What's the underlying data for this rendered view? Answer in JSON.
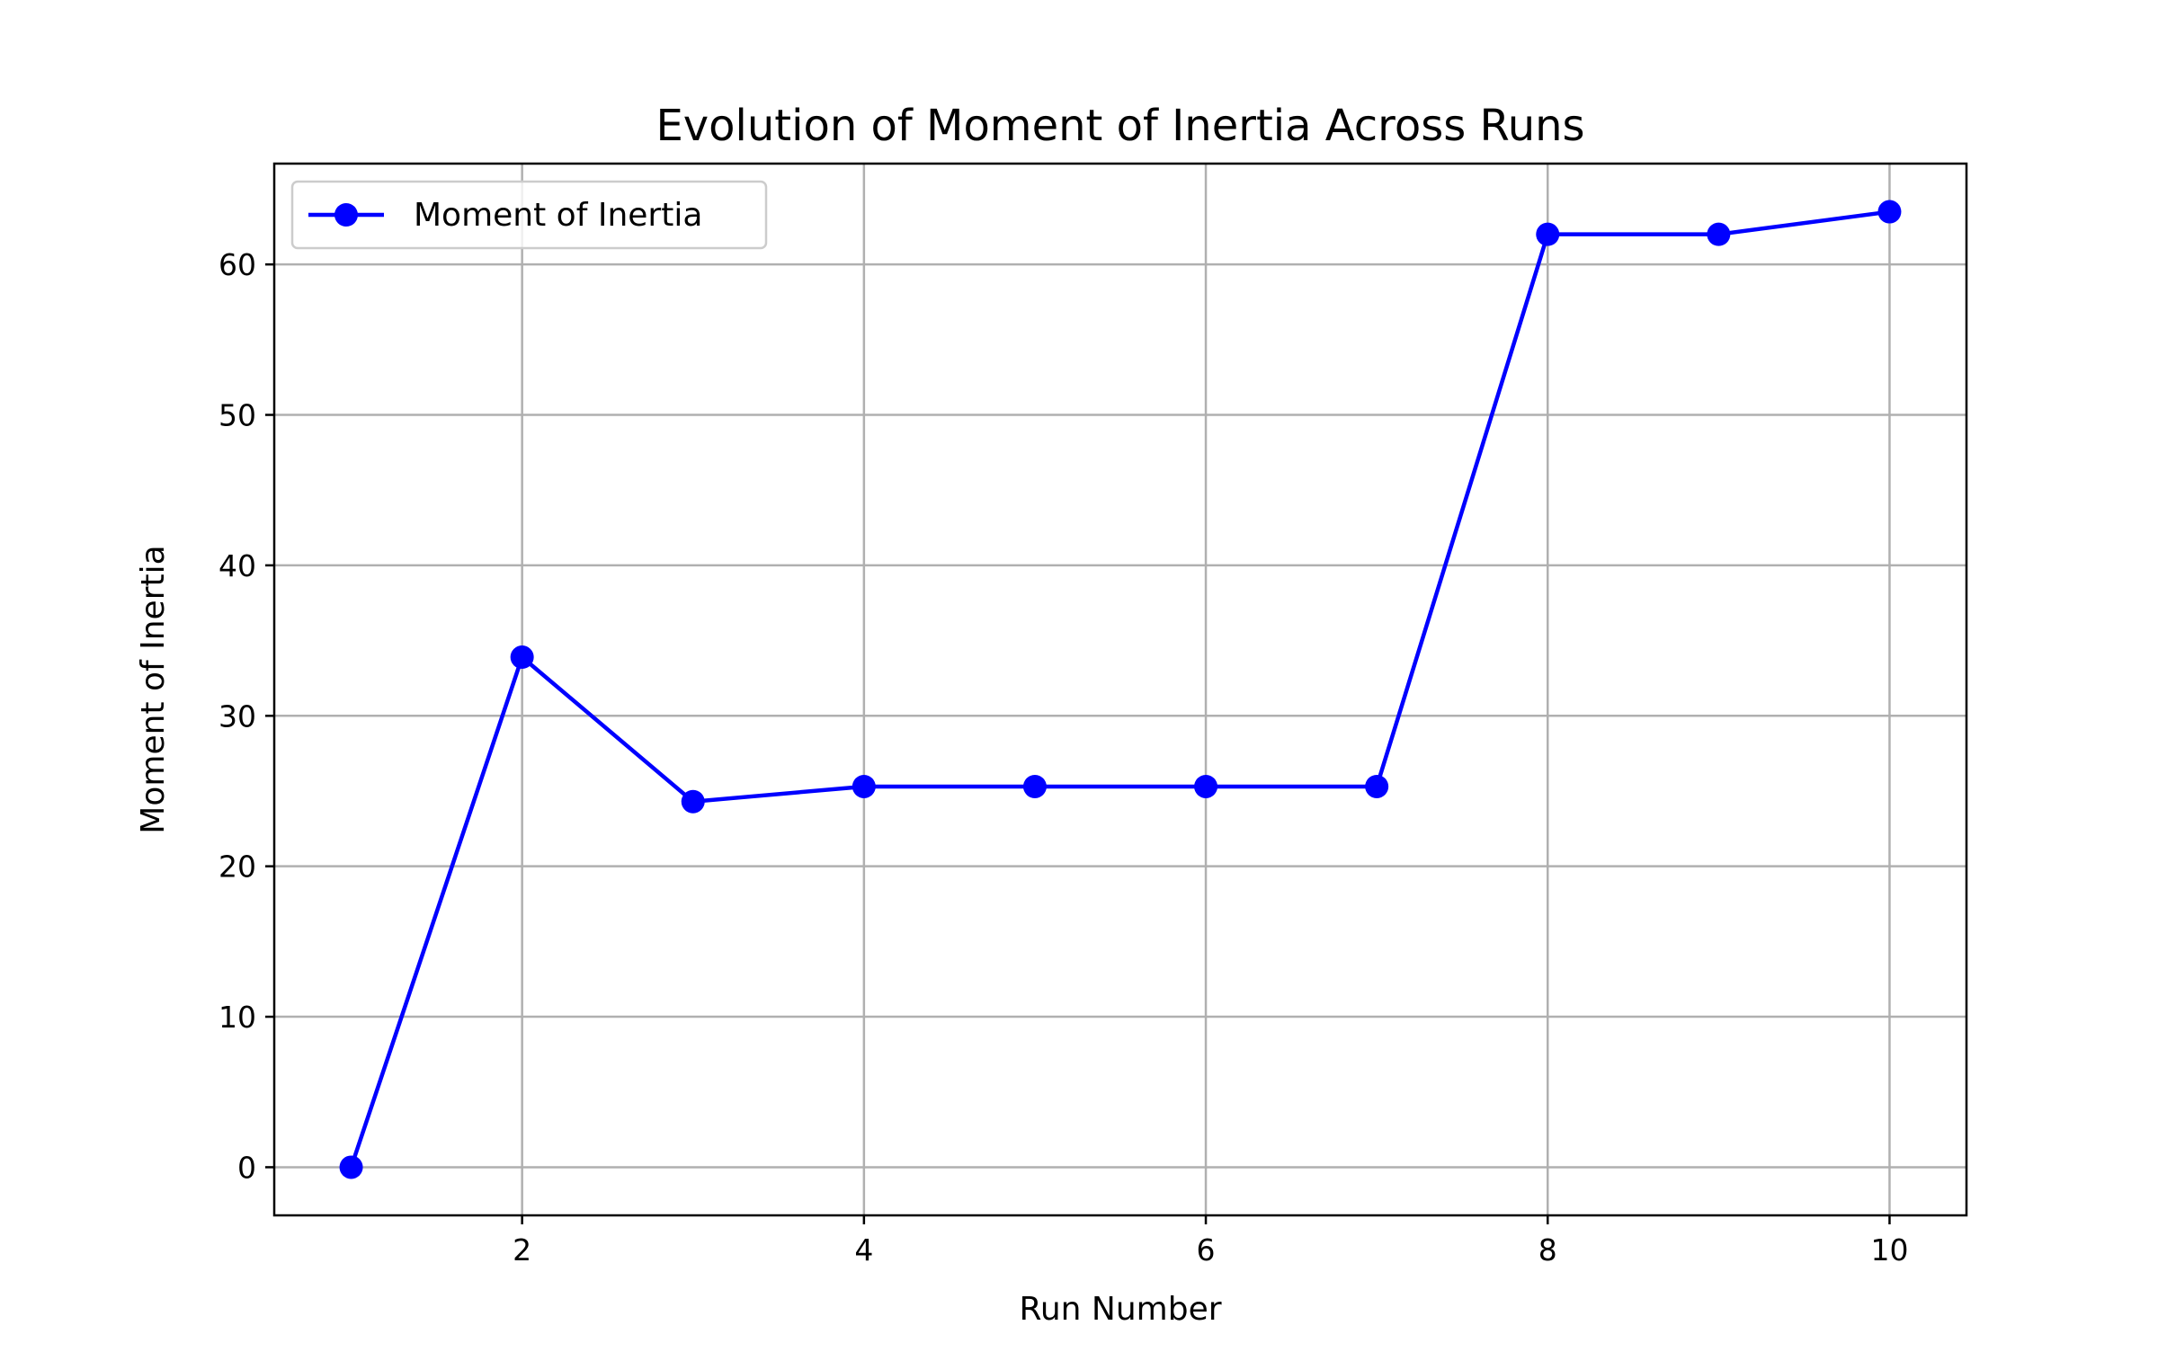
{
  "chart_data": {
    "type": "line",
    "title": "Evolution of Moment of Inertia Across Runs",
    "xlabel": "Run Number",
    "ylabel": "Moment of Inertia",
    "xlim": [
      0.55,
      10.45
    ],
    "ylim": [
      -3.2,
      66.7
    ],
    "xticks": [
      2,
      4,
      6,
      8,
      10
    ],
    "yticks": [
      0,
      10,
      20,
      30,
      40,
      50,
      60
    ],
    "grid": true,
    "legend_position": "upper left",
    "series": [
      {
        "name": "Moment of Inertia",
        "color": "#0000ff",
        "marker": "circle",
        "x": [
          1,
          2,
          3,
          4,
          5,
          6,
          7,
          8,
          9,
          10
        ],
        "y": [
          0.0,
          33.9,
          24.3,
          25.3,
          25.3,
          25.3,
          25.3,
          62.0,
          62.0,
          63.5
        ]
      }
    ]
  }
}
